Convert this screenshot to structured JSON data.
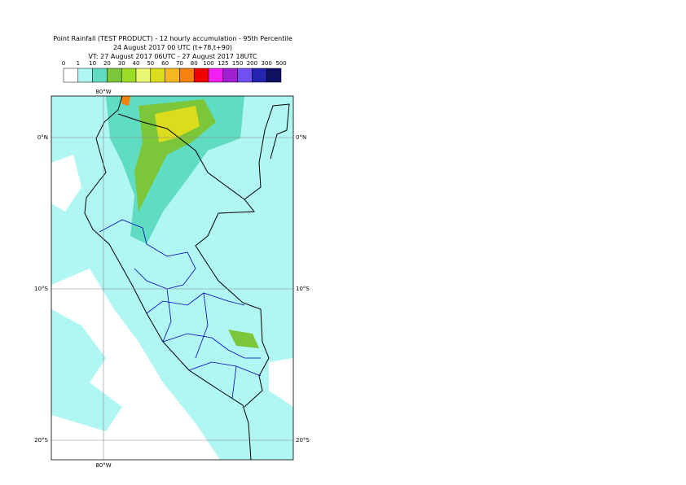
{
  "header": {
    "title": "Point Rainfall (TEST PRODUCT) - 12 hourly accumulation - 95th Percentile",
    "run": "24 August 2017 00 UTC (t+78,t+90)",
    "valid": "VT: 27 August 2017 06UTC - 27 August 2017 18UTC"
  },
  "legend": {
    "labels": [
      0,
      1,
      10,
      20,
      30,
      40,
      50,
      60,
      70,
      80,
      100,
      125,
      150,
      200,
      300,
      500
    ],
    "colors": [
      "#ffffff",
      "#b0f6f2",
      "#5fdcc2",
      "#7cc63a",
      "#9bdc26",
      "#e8f876",
      "#dcdc1e",
      "#f5b820",
      "#f5820e",
      "#f00000",
      "#f020f0",
      "#a020d0",
      "#7050f0",
      "#2424b0",
      "#101060"
    ]
  },
  "map": {
    "lon_label_top": "80°W",
    "lon_label_bottom": "80°W",
    "lat_labels": [
      "0°N",
      "10°S",
      "20°S"
    ]
  }
}
